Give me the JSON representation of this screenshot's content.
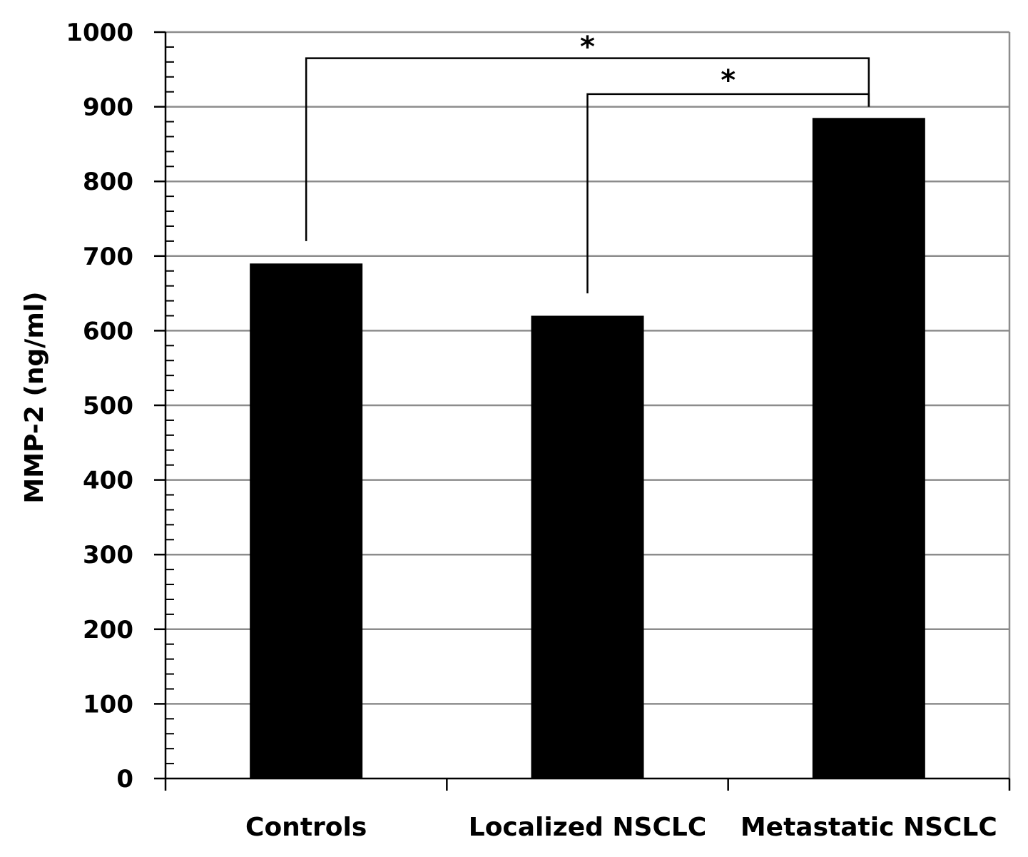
{
  "chart_data": {
    "type": "bar",
    "categories": [
      "Controls",
      "Localized NSCLC",
      "Metastatic NSCLC"
    ],
    "values": [
      690,
      620,
      885
    ],
    "ylabel": "MMP-2 (ng/ml)",
    "ylim": [
      0,
      1000
    ],
    "yticks": [
      0,
      100,
      200,
      300,
      400,
      500,
      600,
      700,
      800,
      900,
      1000
    ],
    "grid": true,
    "bar_color": "#000000",
    "significance": [
      {
        "from": "Controls",
        "to": "Metastatic NSCLC",
        "label": "*"
      },
      {
        "from": "Localized NSCLC",
        "to": "Metastatic NSCLC",
        "label": "*"
      }
    ]
  }
}
